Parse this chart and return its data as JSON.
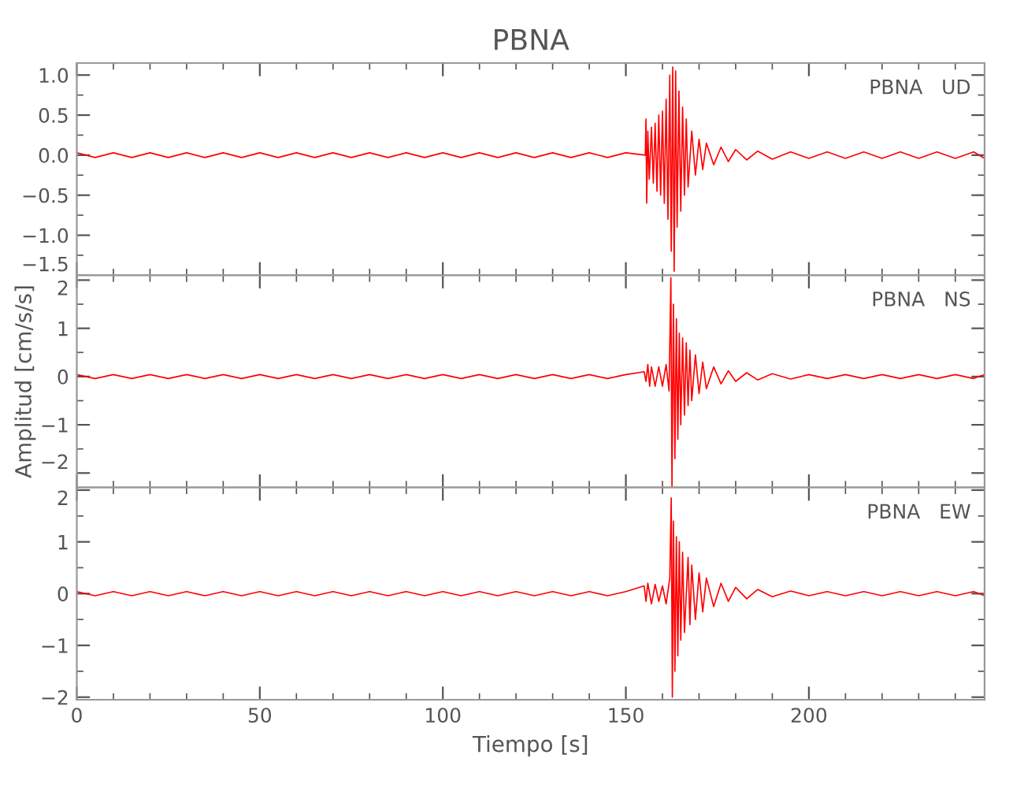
{
  "chart_data": [
    {
      "type": "line",
      "title": "PBNA",
      "annotations": [
        "PBNA   UD"
      ],
      "xlim": [
        0,
        248
      ],
      "xticks": [
        0,
        50,
        100,
        150,
        200
      ],
      "ylim": [
        -1.5,
        1.15
      ],
      "yticks": [
        {
          "value": -1.5,
          "label": "−1.5"
        },
        {
          "value": -1.0,
          "label": "−1.0"
        },
        {
          "value": -0.5,
          "label": "−0.5"
        },
        {
          "value": 0.0,
          "label": "0.0"
        },
        0.5,
        {
          "value": 1.0,
          "label": "1.0"
        }
      ],
      "tick_labels": "y",
      "grid": false,
      "legend": false,
      "series": [
        {
          "color": "#ff0000",
          "x": [
            0,
            5,
            10,
            15,
            20,
            25,
            30,
            35,
            40,
            45,
            50,
            55,
            60,
            65,
            70,
            75,
            80,
            85,
            90,
            95,
            100,
            105,
            110,
            115,
            120,
            125,
            130,
            135,
            140,
            145,
            150,
            155.3,
            155.5,
            155.7,
            156,
            156.4,
            157,
            157.5,
            158,
            158.5,
            159,
            159.5,
            160,
            160.5,
            161,
            161.5,
            162,
            162.4,
            162.8,
            163.2,
            163.6,
            164,
            164.5,
            165,
            165.5,
            166,
            166.5,
            167,
            168,
            169,
            170,
            171,
            172,
            174,
            176,
            178,
            180,
            183,
            186,
            190,
            195,
            200,
            205,
            210,
            215,
            220,
            225,
            230,
            235,
            240,
            245,
            248
          ],
          "values": [
            0.03,
            -0.03,
            0.03,
            -0.03,
            0.03,
            -0.03,
            0.03,
            -0.03,
            0.03,
            -0.03,
            0.03,
            -0.03,
            0.03,
            -0.03,
            0.03,
            -0.03,
            0.03,
            -0.03,
            0.03,
            -0.03,
            0.03,
            -0.03,
            0.03,
            -0.03,
            0.03,
            -0.03,
            0.03,
            -0.03,
            0.03,
            -0.03,
            0.03,
            0.0,
            0.45,
            -0.6,
            0.3,
            -0.3,
            0.35,
            -0.35,
            0.4,
            -0.45,
            0.5,
            -0.5,
            0.55,
            -0.6,
            0.7,
            -0.8,
            1.0,
            -1.2,
            1.1,
            -1.45,
            1.05,
            -0.9,
            0.8,
            -0.7,
            0.6,
            -0.5,
            0.45,
            -0.4,
            0.3,
            -0.25,
            0.2,
            -0.18,
            0.15,
            -0.12,
            0.1,
            -0.08,
            0.07,
            -0.06,
            0.05,
            -0.05,
            0.04,
            -0.04,
            0.04,
            -0.04,
            0.04,
            -0.04,
            0.04,
            -0.04,
            0.04,
            -0.04,
            0.04,
            -0.04
          ]
        }
      ]
    },
    {
      "type": "line",
      "ylabel": "Amplitud [cm/s/s]",
      "annotations": [
        "PBNA   NS"
      ],
      "xlim": [
        0,
        248
      ],
      "xticks": [
        0,
        50,
        100,
        150,
        200
      ],
      "ylim": [
        -2.3,
        2.1
      ],
      "yticks": [
        {
          "value": -2,
          "label": "−2"
        },
        {
          "value": -1,
          "label": "−1"
        },
        0,
        1,
        2
      ],
      "tick_labels": "y",
      "grid": false,
      "legend": false,
      "series": [
        {
          "color": "#ff0000",
          "x": [
            0,
            5,
            10,
            15,
            20,
            25,
            30,
            35,
            40,
            45,
            50,
            55,
            60,
            65,
            70,
            75,
            80,
            85,
            90,
            95,
            100,
            105,
            110,
            115,
            120,
            125,
            130,
            135,
            140,
            145,
            150,
            155,
            155.5,
            156,
            156.5,
            157,
            158,
            159,
            160,
            161,
            161.8,
            162.3,
            162.6,
            163,
            163.4,
            163.8,
            164.2,
            164.6,
            165,
            165.5,
            166,
            166.5,
            167,
            167.5,
            168,
            169,
            170,
            171,
            172,
            174,
            176,
            178,
            180,
            183,
            186,
            190,
            195,
            200,
            205,
            210,
            215,
            220,
            225,
            230,
            235,
            240,
            245,
            248
          ],
          "values": [
            0.04,
            -0.04,
            0.04,
            -0.04,
            0.04,
            -0.04,
            0.04,
            -0.04,
            0.04,
            -0.04,
            0.04,
            -0.04,
            0.04,
            -0.04,
            0.04,
            -0.04,
            0.04,
            -0.04,
            0.04,
            -0.04,
            0.04,
            -0.04,
            0.04,
            -0.04,
            0.04,
            -0.04,
            0.04,
            -0.04,
            0.04,
            -0.04,
            0.04,
            0.1,
            -0.1,
            0.25,
            -0.2,
            0.2,
            -0.2,
            0.2,
            -0.2,
            0.25,
            -0.3,
            2.05,
            -2.3,
            1.5,
            -1.7,
            1.2,
            -1.3,
            0.9,
            -1.0,
            0.8,
            -0.8,
            0.7,
            -0.6,
            0.55,
            -0.5,
            0.45,
            -0.35,
            0.3,
            -0.25,
            0.2,
            -0.15,
            0.12,
            -0.1,
            0.08,
            -0.07,
            0.06,
            -0.05,
            0.04,
            -0.04,
            0.04,
            -0.04,
            0.04,
            -0.04,
            0.04,
            -0.04,
            0.04,
            -0.04,
            0.04
          ]
        }
      ]
    },
    {
      "type": "line",
      "xlabel": "Tiempo [s]",
      "annotations": [
        "PBNA   EW"
      ],
      "xlim": [
        0,
        248
      ],
      "xticks": [
        0,
        50,
        100,
        150,
        200
      ],
      "ylim": [
        -2.05,
        2.05
      ],
      "yticks": [
        {
          "value": -2,
          "label": "−2"
        },
        {
          "value": -1,
          "label": "−1"
        },
        0,
        1,
        2
      ],
      "grid": false,
      "legend": false,
      "series": [
        {
          "color": "#ff0000",
          "x": [
            0,
            5,
            10,
            15,
            20,
            25,
            30,
            35,
            40,
            45,
            50,
            55,
            60,
            65,
            70,
            75,
            80,
            85,
            90,
            95,
            100,
            105,
            110,
            115,
            120,
            125,
            130,
            135,
            140,
            145,
            150,
            155,
            155.5,
            156,
            157,
            158,
            159,
            160,
            161,
            162,
            162.4,
            162.7,
            163,
            163.4,
            163.8,
            164.2,
            164.6,
            165,
            165.5,
            166,
            167,
            167.5,
            168,
            169,
            170,
            171,
            172,
            174,
            176,
            178,
            180,
            183,
            186,
            190,
            195,
            200,
            205,
            210,
            215,
            220,
            225,
            230,
            235,
            240,
            245,
            248
          ],
          "values": [
            0.04,
            -0.04,
            0.04,
            -0.04,
            0.04,
            -0.04,
            0.04,
            -0.04,
            0.04,
            -0.04,
            0.04,
            -0.04,
            0.04,
            -0.04,
            0.04,
            -0.04,
            0.04,
            -0.04,
            0.04,
            -0.04,
            0.04,
            -0.04,
            0.04,
            -0.04,
            0.04,
            -0.04,
            0.04,
            -0.04,
            0.04,
            -0.04,
            0.04,
            0.15,
            -0.15,
            0.2,
            -0.2,
            0.18,
            -0.15,
            0.15,
            -0.2,
            0.3,
            1.85,
            -2.0,
            1.4,
            -1.5,
            1.1,
            -1.2,
            1.0,
            -0.9,
            0.8,
            -0.75,
            0.7,
            -0.6,
            0.55,
            -0.5,
            0.4,
            -0.35,
            0.3,
            -0.25,
            0.2,
            -0.15,
            0.12,
            -0.1,
            0.08,
            -0.06,
            0.05,
            -0.04,
            0.04,
            -0.04,
            0.04,
            -0.04,
            0.04,
            -0.04,
            0.04,
            -0.04,
            0.04,
            -0.04
          ]
        }
      ]
    }
  ]
}
